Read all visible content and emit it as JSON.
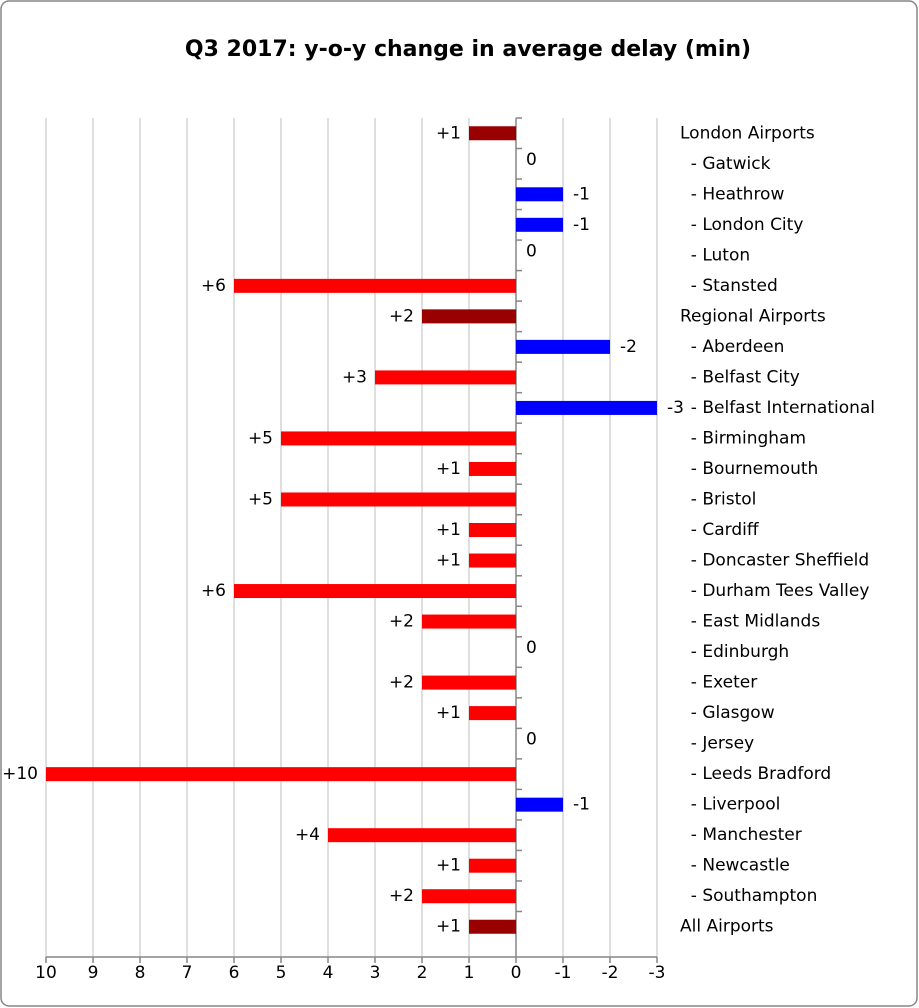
{
  "chart_data": {
    "type": "barh",
    "title": "Q3 2017: y-o-y change in average delay (min)",
    "categories": [
      "London Airports",
      "  - Gatwick",
      "  - Heathrow",
      "  - London City",
      "  - Luton",
      "  - Stansted",
      "Regional Airports",
      "  - Aberdeen",
      "  - Belfast City",
      "  - Belfast International",
      "  - Birmingham",
      "  - Bournemouth",
      "  - Bristol",
      "  - Cardiff",
      "  - Doncaster Sheffield",
      "  - Durham Tees Valley",
      "  - East Midlands",
      "  - Edinburgh",
      "  - Exeter",
      "  - Glasgow",
      "  - Jersey",
      "  - Leeds Bradford",
      "  - Liverpool",
      "  - Manchester",
      "  - Newcastle",
      "  - Southampton",
      "All Airports"
    ],
    "values": [
      1,
      0,
      -1,
      -1,
      0,
      6,
      2,
      -2,
      3,
      -3,
      5,
      1,
      5,
      1,
      1,
      6,
      2,
      0,
      2,
      1,
      0,
      10,
      -1,
      4,
      1,
      2,
      1
    ],
    "value_labels": [
      "+1",
      "0",
      "-1",
      "-1",
      "0",
      "+6",
      "+2",
      "-2",
      "+3",
      "-3",
      "+5",
      "+1",
      "+5",
      "+1",
      "+1",
      "+6",
      "+2",
      "0",
      "+2",
      "+1",
      "0",
      "+10",
      "-1",
      "+4",
      "+1",
      "+2",
      "+1"
    ],
    "colors": [
      "#990000",
      "#ff0000",
      "#0000ff",
      "#0000ff",
      "#ff0000",
      "#ff0000",
      "#990000",
      "#0000ff",
      "#ff0000",
      "#0000ff",
      "#ff0000",
      "#ff0000",
      "#ff0000",
      "#ff0000",
      "#ff0000",
      "#ff0000",
      "#ff0000",
      "#ff0000",
      "#ff0000",
      "#ff0000",
      "#ff0000",
      "#ff0000",
      "#0000ff",
      "#ff0000",
      "#ff0000",
      "#ff0000",
      "#990000"
    ],
    "xlim": [
      10,
      -3
    ],
    "xticks": [
      10,
      9,
      8,
      7,
      6,
      5,
      4,
      3,
      2,
      1,
      0,
      -1,
      -2,
      -3
    ],
    "grid": true
  }
}
